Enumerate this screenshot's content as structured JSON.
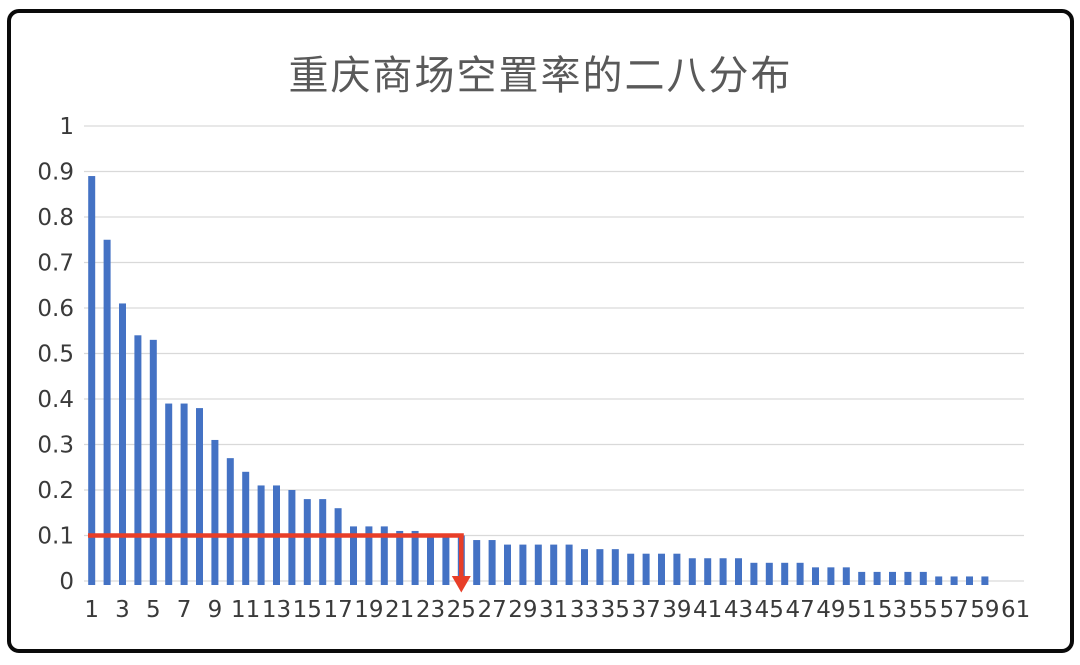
{
  "frame": {
    "background": "#ffffff",
    "border_color": "#0a0a0a"
  },
  "chart_data": {
    "type": "bar",
    "title": "重庆商场空置率的二八分布",
    "xlabel": "",
    "ylabel": "",
    "categories": [
      1,
      2,
      3,
      4,
      5,
      6,
      7,
      8,
      9,
      10,
      11,
      12,
      13,
      14,
      15,
      16,
      17,
      18,
      19,
      20,
      21,
      22,
      23,
      24,
      25,
      26,
      27,
      28,
      29,
      30,
      31,
      32,
      33,
      34,
      35,
      36,
      37,
      38,
      39,
      40,
      41,
      42,
      43,
      44,
      45,
      46,
      47,
      48,
      49,
      50,
      51,
      52,
      53,
      54,
      55,
      56,
      57,
      58,
      59,
      60,
      61
    ],
    "values": [
      0.89,
      0.75,
      0.61,
      0.54,
      0.53,
      0.39,
      0.39,
      0.38,
      0.31,
      0.27,
      0.24,
      0.21,
      0.21,
      0.2,
      0.18,
      0.18,
      0.16,
      0.12,
      0.12,
      0.12,
      0.11,
      0.11,
      0.1,
      0.1,
      0.1,
      0.09,
      0.09,
      0.08,
      0.08,
      0.08,
      0.08,
      0.08,
      0.07,
      0.07,
      0.07,
      0.06,
      0.06,
      0.06,
      0.06,
      0.05,
      0.05,
      0.05,
      0.05,
      0.04,
      0.04,
      0.04,
      0.04,
      0.03,
      0.03,
      0.03,
      0.02,
      0.02,
      0.02,
      0.02,
      0.02,
      0.01,
      0.01,
      0.01,
      0.01,
      0,
      0
    ],
    "ylim": [
      0,
      1
    ],
    "y_ticks": [
      0,
      0.1,
      0.2,
      0.3,
      0.4,
      0.5,
      0.6,
      0.7,
      0.8,
      0.9,
      1
    ],
    "y_tick_labels": [
      "0",
      "0.1",
      "0.2",
      "0.3",
      "0.4",
      "0.5",
      "0.6",
      "0.7",
      "0.8",
      "0.9",
      "1"
    ],
    "x_tick_labels": [
      "1",
      "3",
      "5",
      "7",
      "9",
      "11",
      "13",
      "15",
      "17",
      "19",
      "21",
      "23",
      "25",
      "27",
      "29",
      "31",
      "33",
      "35",
      "37",
      "39",
      "41",
      "43",
      "45",
      "47",
      "49",
      "51",
      "53",
      "55",
      "57",
      "59",
      "61"
    ],
    "grid": "horizontal",
    "legend": "none",
    "bar_color": "#4472c4",
    "title_color": "#595959",
    "axis_label_color": "#3a3a3a",
    "gridline_color": "#d9d9d9",
    "annotation": {
      "shape": "threshold-arrow",
      "y_value": 0.1,
      "spans_categories": [
        1,
        25
      ],
      "arrow_down_at_category": 25,
      "color": "#e83e28"
    }
  }
}
